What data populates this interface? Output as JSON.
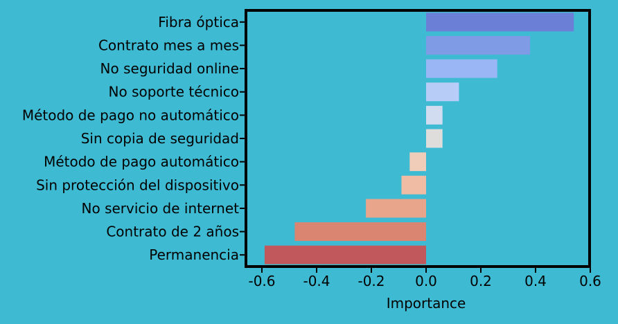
{
  "chart_data": {
    "type": "bar",
    "orientation": "horizontal",
    "categories": [
      "Fibra óptica",
      "Contrato mes a mes",
      "No seguridad online",
      "No soporte técnico",
      "Método de pago no automático",
      "Sin copia de seguridad",
      "Método de pago automático",
      "Sin protección del dispositivo",
      "No servicio de internet",
      "Contrato de 2 años",
      "Permanencia"
    ],
    "values": [
      0.54,
      0.38,
      0.26,
      0.12,
      0.06,
      0.06,
      -0.06,
      -0.09,
      -0.22,
      -0.48,
      -0.59
    ],
    "colors": [
      "#6b7fd6",
      "#7f9be6",
      "#9ab6f4",
      "#b7cdf8",
      "#d1dcf1",
      "#dfdcdc",
      "#efcdb9",
      "#f0bca3",
      "#e8a58c",
      "#d98571",
      "#c1595c"
    ],
    "xlabel": "Importance",
    "ylabel": "",
    "title": "",
    "xlim": [
      -0.6,
      0.6
    ],
    "xticks": [
      -0.6,
      -0.4,
      -0.2,
      0.0,
      0.2,
      0.4,
      0.6
    ],
    "xtick_labels": [
      "-0.6",
      "-0.4",
      "-0.2",
      "0.0",
      "0.2",
      "0.4",
      "0.6"
    ],
    "grid": false,
    "legend": "none",
    "background_color": "#3fbad3",
    "frame_color": "#000000"
  }
}
